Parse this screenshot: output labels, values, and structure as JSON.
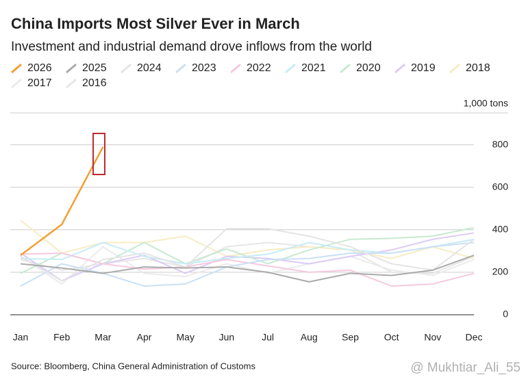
{
  "chart_data": {
    "type": "line",
    "title": "China Imports Most Silver Ever in March",
    "subtitle": "Investment and industrial demand drove inflows from the world",
    "y_unit": "1,000 tons",
    "source": "Source: Bloomberg, China General Administration of Customs",
    "watermark": "@ Mukhtiar_Ali_55",
    "categories": [
      "Jan",
      "Feb",
      "Mar",
      "Apr",
      "May",
      "Jun",
      "Jul",
      "Aug",
      "Sep",
      "Oct",
      "Nov",
      "Dec"
    ],
    "ylim": [
      0,
      950
    ],
    "yticks": [
      0,
      200,
      400,
      600,
      800
    ],
    "grid": true,
    "series": [
      {
        "name": "2026",
        "color": "#f0a030",
        "values": [
          280,
          425,
          790,
          null,
          null,
          null,
          null,
          null,
          null,
          null,
          null,
          null
        ]
      },
      {
        "name": "2025",
        "color": "#aaaaaa",
        "values": [
          240,
          220,
          195,
          225,
          220,
          225,
          200,
          155,
          195,
          185,
          210,
          280
        ]
      },
      {
        "name": "2024",
        "color": "#e4e4e4",
        "values": [
          275,
          160,
          260,
          290,
          225,
          405,
          405,
          370,
          320,
          240,
          210,
          355
        ]
      },
      {
        "name": "2023",
        "color": "#c9e0f5",
        "values": [
          135,
          240,
          195,
          135,
          145,
          225,
          260,
          265,
          290,
          290,
          320,
          340
        ]
      },
      {
        "name": "2022",
        "color": "#f5c9de",
        "values": [
          285,
          290,
          240,
          215,
          225,
          260,
          230,
          200,
          210,
          135,
          145,
          195
        ]
      },
      {
        "name": "2021",
        "color": "#c6ecf5",
        "values": [
          265,
          260,
          340,
          275,
          240,
          265,
          285,
          340,
          305,
          290,
          320,
          355
        ]
      },
      {
        "name": "2020",
        "color": "#c6e9cf",
        "values": [
          195,
          290,
          240,
          340,
          240,
          310,
          240,
          305,
          355,
          360,
          370,
          410
        ]
      },
      {
        "name": "2019",
        "color": "#dccbf5",
        "values": [
          290,
          160,
          240,
          280,
          195,
          275,
          265,
          240,
          275,
          305,
          355,
          385
        ]
      },
      {
        "name": "2018",
        "color": "#f7ecc4",
        "values": [
          445,
          290,
          340,
          340,
          370,
          275,
          305,
          320,
          305,
          265,
          320,
          265
        ]
      },
      {
        "name": "2017",
        "color": "#ebebeb",
        "values": [
          275,
          145,
          320,
          195,
          180,
          240,
          195,
          240,
          275,
          210,
          185,
          260
        ]
      },
      {
        "name": "2016",
        "color": "#e6e6e6",
        "values": [
          260,
          210,
          240,
          265,
          225,
          320,
          340,
          320,
          305,
          200,
          195,
          275
        ]
      }
    ]
  }
}
